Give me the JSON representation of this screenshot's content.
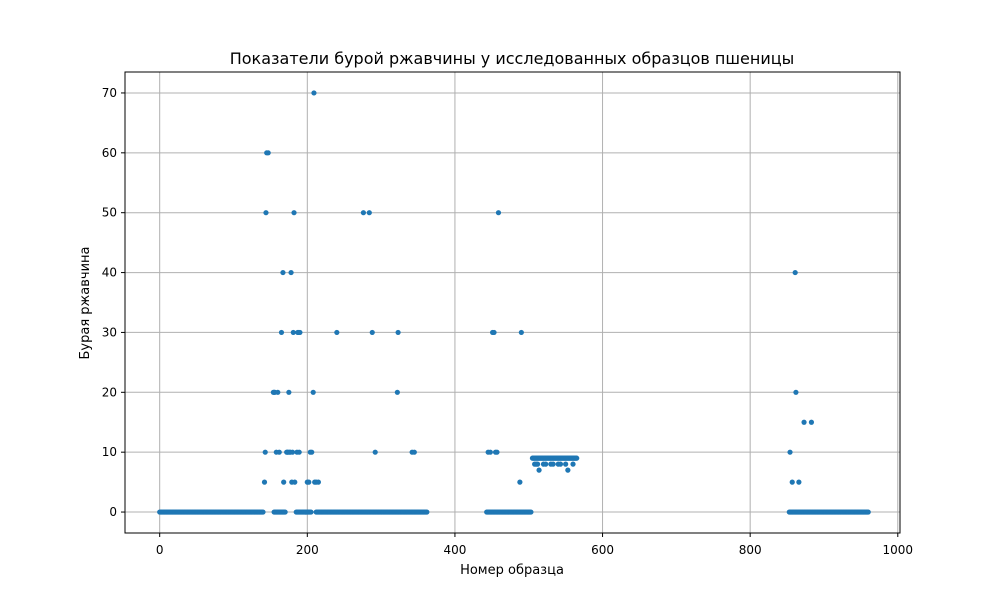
{
  "chart_data": {
    "type": "scatter",
    "title": "Показатели бурой ржавчины у исследованных образцов пшеницы",
    "xlabel": "Номер образца",
    "ylabel": "Бурая ржавчина",
    "xlim": [
      -47,
      1003
    ],
    "ylim": [
      -3.5,
      73.5
    ],
    "xticks": [
      0,
      200,
      400,
      600,
      800,
      1000
    ],
    "yticks": [
      0,
      10,
      20,
      30,
      40,
      50,
      60,
      70
    ],
    "grid": true,
    "marker_color": "#1f77b4",
    "zero_runs": [
      [
        0,
        140
      ],
      [
        155,
        170
      ],
      [
        185,
        205
      ],
      [
        212,
        362
      ],
      [
        443,
        503
      ],
      [
        853,
        960
      ]
    ],
    "nine_run": [
      505,
      565
    ],
    "points": [
      [
        142,
        5
      ],
      [
        143,
        10
      ],
      [
        144,
        50
      ],
      [
        145,
        60
      ],
      [
        147,
        60
      ],
      [
        154,
        20
      ],
      [
        155,
        20
      ],
      [
        156,
        20
      ],
      [
        158,
        10
      ],
      [
        160,
        20
      ],
      [
        162,
        10
      ],
      [
        165,
        30
      ],
      [
        167,
        40
      ],
      [
        168,
        5
      ],
      [
        172,
        10
      ],
      [
        173,
        10
      ],
      [
        174,
        10
      ],
      [
        175,
        20
      ],
      [
        176,
        10
      ],
      [
        177,
        10
      ],
      [
        178,
        40
      ],
      [
        179,
        5
      ],
      [
        180,
        10
      ],
      [
        181,
        30
      ],
      [
        182,
        50
      ],
      [
        183,
        5
      ],
      [
        186,
        10
      ],
      [
        187,
        30
      ],
      [
        188,
        30
      ],
      [
        189,
        10
      ],
      [
        190,
        30
      ],
      [
        198,
        0
      ],
      [
        200,
        5
      ],
      [
        202,
        5
      ],
      [
        204,
        10
      ],
      [
        206,
        10
      ],
      [
        208,
        20
      ],
      [
        209,
        70
      ],
      [
        210,
        5
      ],
      [
        212,
        5
      ],
      [
        215,
        5
      ],
      [
        240,
        30
      ],
      [
        276,
        50
      ],
      [
        284,
        50
      ],
      [
        288,
        30
      ],
      [
        292,
        10
      ],
      [
        322,
        20
      ],
      [
        323,
        30
      ],
      [
        342,
        10
      ],
      [
        345,
        10
      ],
      [
        445,
        10
      ],
      [
        448,
        10
      ],
      [
        451,
        30
      ],
      [
        453,
        30
      ],
      [
        455,
        10
      ],
      [
        457,
        10
      ],
      [
        459,
        50
      ],
      [
        488,
        5
      ],
      [
        490,
        30
      ],
      [
        508,
        8
      ],
      [
        510,
        8
      ],
      [
        512,
        8
      ],
      [
        514,
        7
      ],
      [
        520,
        8
      ],
      [
        523,
        8
      ],
      [
        530,
        8
      ],
      [
        533,
        8
      ],
      [
        540,
        8
      ],
      [
        543,
        8
      ],
      [
        550,
        8
      ],
      [
        553,
        7
      ],
      [
        560,
        8
      ],
      [
        854,
        10
      ],
      [
        857,
        5
      ],
      [
        861,
        40
      ],
      [
        862,
        20
      ],
      [
        866,
        5
      ],
      [
        873,
        15
      ],
      [
        883,
        15
      ]
    ]
  }
}
